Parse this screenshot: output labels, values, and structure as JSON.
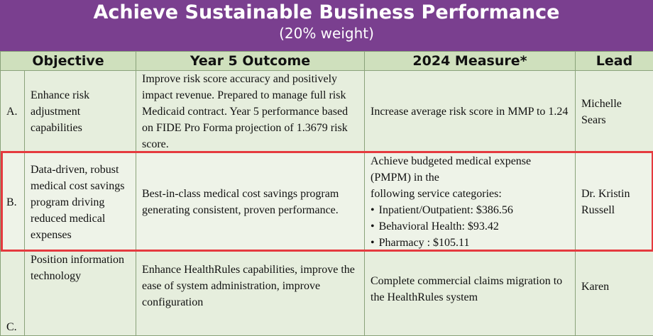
{
  "header": {
    "title": "Achieve Sustainable Business Performance",
    "subtitle": "(20% weight)"
  },
  "table": {
    "columns": [
      "Objective",
      "Year 5 Outcome",
      "2024 Measure*",
      "Lead"
    ],
    "rows": [
      {
        "letter": "A.",
        "objective": "Enhance risk adjustment capabilities",
        "outcome": "Improve risk score accuracy and positively impact revenue. Prepared to manage full risk Medicaid contract. Year 5 performance based on FIDE Pro Forma projection of 1.3679 risk score.",
        "measure": "Increase average risk score in MMP to 1.24",
        "lead": "Michelle Sears"
      },
      {
        "letter": "B.",
        "objective": "Data-driven, robust medical cost savings program driving reduced medical expenses",
        "outcome": "Best-in-class medical cost savings program generating consistent, proven performance.",
        "measure_intro": "Achieve budgeted medical expense (PMPM) in the",
        "measure_intro2": "following service categories:",
        "measure_items": [
          "Inpatient/Outpatient: $386.56",
          "Behavioral Health: $93.42",
          "Pharmacy : $105.11"
        ],
        "lead": "Dr. Kristin Russell"
      },
      {
        "letter": "C.",
        "objective": "Position information technology",
        "outcome": "Enhance HealthRules capabilities, improve the ease of system administration, improve configuration",
        "measure": "Complete commercial claims migration to the HealthRules system",
        "lead": "Karen"
      }
    ]
  },
  "colors": {
    "banner": "#7a3f8f",
    "header_row": "#cfe0bd",
    "highlight": "#e53a3f"
  }
}
